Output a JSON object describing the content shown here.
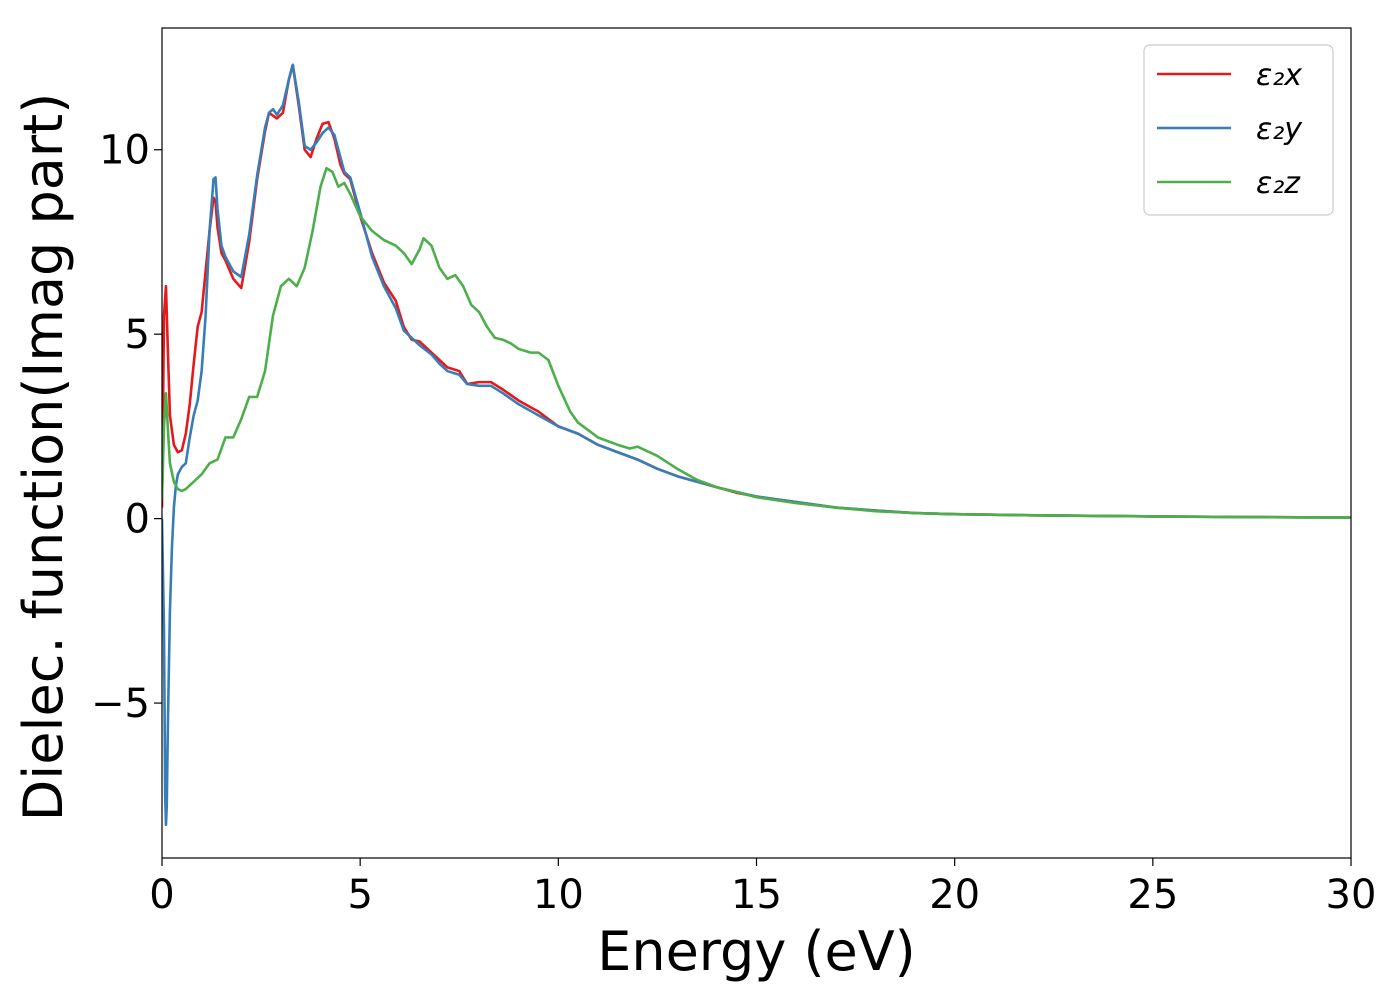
{
  "chart_data": {
    "type": "line",
    "title": "",
    "xlabel": "Energy (eV)",
    "ylabel": "Dielec. function(Imag part)",
    "xlim": [
      0,
      30
    ],
    "ylim": [
      -9.2,
      13.3
    ],
    "xticks": [
      0,
      5,
      10,
      15,
      20,
      25,
      30
    ],
    "xtick_labels": [
      "0",
      "5",
      "10",
      "15",
      "20",
      "25",
      "30"
    ],
    "yticks": [
      -5,
      0,
      5,
      10
    ],
    "ytick_labels": [
      "−5",
      "0",
      "5",
      "10"
    ],
    "grid": false,
    "legend_position": "top-right",
    "series": [
      {
        "name": "ε₂x",
        "color": "#e41a1c",
        "x": [
          0,
          0.05,
          0.1,
          0.15,
          0.2,
          0.3,
          0.4,
          0.5,
          0.6,
          0.7,
          0.8,
          0.9,
          1.0,
          1.1,
          1.2,
          1.3,
          1.35,
          1.4,
          1.5,
          1.6,
          1.8,
          2.0,
          2.2,
          2.4,
          2.6,
          2.7,
          2.9,
          3.05,
          3.2,
          3.3,
          3.45,
          3.6,
          3.75,
          3.9,
          4.05,
          4.2,
          4.35,
          4.5,
          4.6,
          4.75,
          5.0,
          5.3,
          5.6,
          5.9,
          6.1,
          6.3,
          6.5,
          6.8,
          7.0,
          7.2,
          7.5,
          7.7,
          8.0,
          8.3,
          8.6,
          9.0,
          9.5,
          10.0,
          10.5,
          11.0,
          11.5,
          12.0,
          12.5,
          13.0,
          13.5,
          14.0,
          14.5,
          15.0,
          16.0,
          17.0,
          18.0,
          19.0,
          20.0,
          22.0,
          25.0,
          28.0,
          30.0
        ],
        "y": [
          0.3,
          5.5,
          6.3,
          4.5,
          2.8,
          2.0,
          1.8,
          1.85,
          2.3,
          3.1,
          4.2,
          5.2,
          5.6,
          6.7,
          7.8,
          8.7,
          8.6,
          7.9,
          7.2,
          7.0,
          6.5,
          6.25,
          7.5,
          9.2,
          10.5,
          11.0,
          10.85,
          11.0,
          11.9,
          12.3,
          11.2,
          10.0,
          9.8,
          10.3,
          10.7,
          10.75,
          10.3,
          9.6,
          9.35,
          9.2,
          8.2,
          7.2,
          6.4,
          5.9,
          5.2,
          4.85,
          4.8,
          4.5,
          4.3,
          4.1,
          4.0,
          3.65,
          3.7,
          3.7,
          3.5,
          3.2,
          2.9,
          2.5,
          2.3,
          2.0,
          1.8,
          1.6,
          1.35,
          1.15,
          1.0,
          0.85,
          0.7,
          0.6,
          0.45,
          0.3,
          0.22,
          0.15,
          0.12,
          0.09,
          0.06,
          0.04,
          0.03
        ]
      },
      {
        "name": "ε₂y",
        "color": "#377eb8",
        "x": [
          0,
          0.05,
          0.08,
          0.1,
          0.12,
          0.15,
          0.2,
          0.25,
          0.3,
          0.35,
          0.4,
          0.5,
          0.6,
          0.7,
          0.8,
          0.9,
          1.0,
          1.1,
          1.2,
          1.3,
          1.35,
          1.4,
          1.5,
          1.6,
          1.8,
          2.0,
          2.2,
          2.4,
          2.6,
          2.7,
          2.8,
          2.9,
          3.05,
          3.2,
          3.3,
          3.45,
          3.6,
          3.75,
          3.9,
          4.05,
          4.2,
          4.35,
          4.5,
          4.6,
          4.75,
          5.0,
          5.3,
          5.6,
          5.9,
          6.1,
          6.3,
          6.5,
          6.8,
          7.0,
          7.2,
          7.5,
          7.7,
          8.0,
          8.3,
          8.6,
          9.0,
          9.5,
          10.0,
          10.5,
          11.0,
          11.5,
          12.0,
          12.5,
          13.0,
          13.5,
          14.0,
          14.5,
          15.0,
          16.0,
          17.0,
          18.0,
          19.0,
          20.0,
          22.0,
          25.0,
          28.0,
          30.0
        ],
        "y": [
          0.0,
          -3.0,
          -7.5,
          -8.3,
          -7.8,
          -5.5,
          -2.5,
          -0.8,
          0.3,
          0.9,
          1.2,
          1.4,
          1.5,
          2.2,
          2.8,
          3.2,
          4.0,
          5.5,
          7.8,
          9.2,
          9.25,
          8.4,
          7.4,
          7.1,
          6.7,
          6.55,
          7.7,
          9.3,
          10.6,
          11.0,
          11.1,
          10.95,
          11.2,
          11.9,
          12.3,
          11.3,
          10.1,
          10.0,
          10.2,
          10.45,
          10.6,
          10.4,
          9.8,
          9.4,
          9.25,
          8.3,
          7.1,
          6.3,
          5.7,
          5.1,
          4.9,
          4.7,
          4.45,
          4.2,
          4.0,
          3.9,
          3.65,
          3.6,
          3.6,
          3.4,
          3.1,
          2.8,
          2.5,
          2.3,
          2.0,
          1.8,
          1.6,
          1.35,
          1.15,
          1.0,
          0.85,
          0.72,
          0.6,
          0.45,
          0.3,
          0.22,
          0.15,
          0.12,
          0.09,
          0.06,
          0.04,
          0.03
        ]
      },
      {
        "name": "ε₂z",
        "color": "#4daf4a",
        "x": [
          0,
          0.05,
          0.1,
          0.15,
          0.2,
          0.3,
          0.4,
          0.5,
          0.6,
          0.8,
          1.0,
          1.2,
          1.4,
          1.5,
          1.6,
          1.8,
          2.0,
          2.2,
          2.4,
          2.6,
          2.8,
          3.0,
          3.2,
          3.4,
          3.6,
          3.8,
          4.0,
          4.15,
          4.3,
          4.45,
          4.6,
          4.75,
          5.0,
          5.3,
          5.6,
          5.9,
          6.1,
          6.3,
          6.5,
          6.6,
          6.8,
          7.0,
          7.2,
          7.4,
          7.6,
          7.8,
          8.0,
          8.2,
          8.4,
          8.6,
          8.8,
          9.0,
          9.3,
          9.5,
          9.75,
          10.0,
          10.3,
          10.5,
          11.0,
          11.5,
          11.8,
          12.0,
          12.5,
          13.0,
          13.5,
          14.0,
          14.5,
          15.0,
          16.0,
          17.0,
          18.0,
          19.0,
          20.0,
          22.0,
          25.0,
          28.0,
          30.0
        ],
        "y": [
          0.5,
          2.5,
          3.4,
          2.4,
          1.5,
          1.0,
          0.8,
          0.75,
          0.8,
          1.0,
          1.2,
          1.5,
          1.6,
          1.9,
          2.2,
          2.2,
          2.7,
          3.3,
          3.3,
          4.0,
          5.5,
          6.3,
          6.5,
          6.3,
          6.8,
          7.8,
          9.0,
          9.5,
          9.4,
          9.0,
          9.1,
          8.8,
          8.2,
          7.8,
          7.55,
          7.4,
          7.2,
          6.9,
          7.3,
          7.6,
          7.4,
          6.8,
          6.5,
          6.6,
          6.3,
          5.8,
          5.6,
          5.2,
          4.9,
          4.85,
          4.75,
          4.6,
          4.5,
          4.5,
          4.3,
          3.6,
          2.9,
          2.6,
          2.2,
          2.0,
          1.9,
          1.95,
          1.7,
          1.35,
          1.05,
          0.85,
          0.72,
          0.58,
          0.42,
          0.3,
          0.2,
          0.15,
          0.12,
          0.09,
          0.06,
          0.04,
          0.03
        ]
      }
    ]
  }
}
